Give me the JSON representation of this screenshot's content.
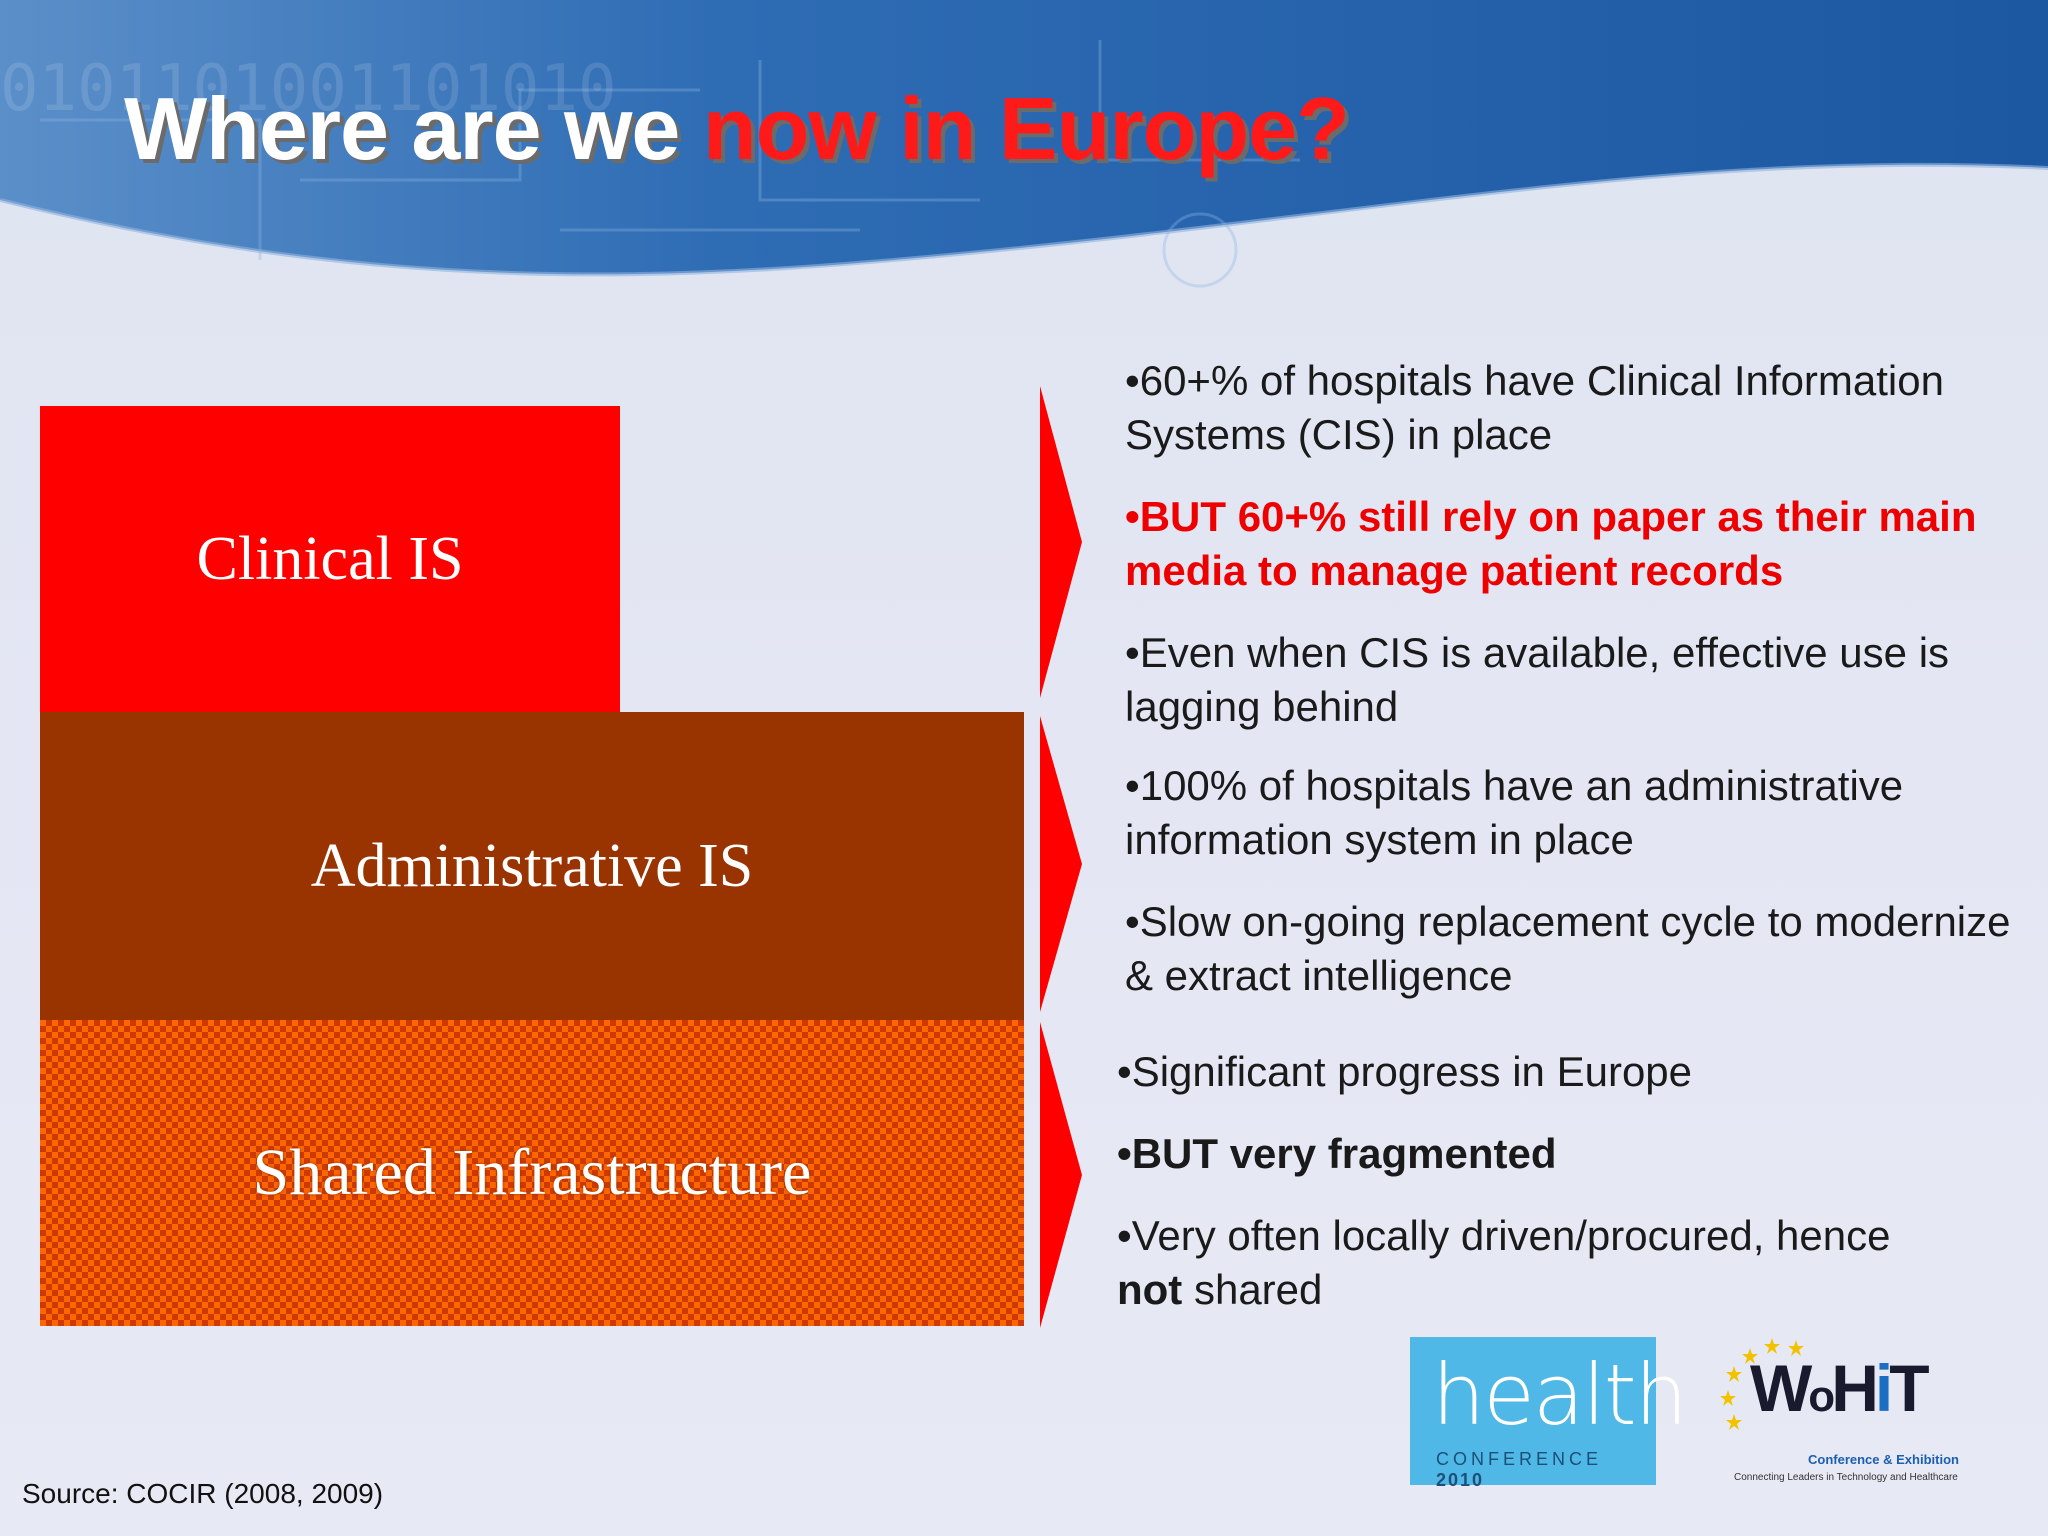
{
  "title": {
    "part1": "Where are we ",
    "part2": "now in Europe?"
  },
  "blocks": {
    "clinical": "Clinical IS",
    "administrative": "Administrative IS",
    "shared": "Shared Infrastructure"
  },
  "bullets": {
    "group1": [
      "•60+% of hospitals have Clinical Information Systems (CIS) in place",
      "•BUT 60+% still rely on paper as their main media to manage patient records",
      "•Even when CIS is available, effective use is lagging behind"
    ],
    "group2": [
      "•100% of hospitals have an administrative information system in place",
      "•Slow on-going replacement cycle to modernize & extract intelligence"
    ],
    "group3": {
      "item1": "•Significant progress in Europe",
      "item2": "•BUT very fragmented",
      "item3_prefix": "•Very often locally driven/procured, hence",
      "item3_bold": "not",
      "item3_suffix": " shared"
    }
  },
  "source": "Source: COCIR (2008, 2009)",
  "logos": {
    "health": {
      "word": "health",
      "sub_prefix": "CONFERENCE ",
      "sub_year": "2010"
    },
    "whit": {
      "mark_prefix": "W",
      "mark_o": "o",
      "mark_h": "H",
      "mark_i": "i",
      "mark_t": "T",
      "conf": "Conference & Exhibition",
      "tag": "Connecting Leaders in Technology and Healthcare"
    }
  },
  "colors": {
    "accent_red": "#ff0000",
    "clinical_block": "#ff0000",
    "administrative_block": "#993300",
    "shared_block": "#ff6600",
    "header_blue": "#1f5ea8"
  }
}
